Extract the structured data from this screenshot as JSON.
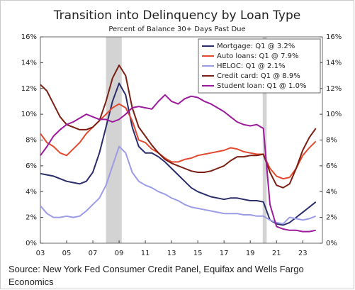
{
  "chart_data": {
    "type": "line",
    "title": "Transition into Delinquency by Loan Type",
    "subtitle": "Percent of Balance 30+ Days Past Due",
    "source": "Source: New York Fed Consumer Credit Panel, Equifax and Wells Fargo Economics",
    "x": [
      2003,
      2003.5,
      2004,
      2004.5,
      2005,
      2005.5,
      2006,
      2006.5,
      2007,
      2007.5,
      2008,
      2008.5,
      2009,
      2009.5,
      2010,
      2010.5,
      2011,
      2011.5,
      2012,
      2012.5,
      2013,
      2013.5,
      2014,
      2014.5,
      2015,
      2015.5,
      2016,
      2016.5,
      2017,
      2017.5,
      2018,
      2018.5,
      2019,
      2019.5,
      2020,
      2020.5,
      2021,
      2021.5,
      2022,
      2022.5,
      2023,
      2023.5,
      2024
    ],
    "series": [
      {
        "name": "Mortgage: Q1 @ 3.2%",
        "color": "#2b2d6b",
        "values": [
          5.4,
          5.3,
          5.2,
          5.0,
          4.8,
          4.7,
          4.6,
          4.8,
          5.5,
          7.0,
          9.0,
          11.0,
          12.4,
          11.5,
          9.0,
          7.5,
          7.0,
          7.0,
          6.7,
          6.3,
          5.8,
          5.3,
          4.8,
          4.3,
          4.0,
          3.8,
          3.6,
          3.5,
          3.4,
          3.5,
          3.5,
          3.4,
          3.3,
          3.3,
          3.2,
          1.8,
          1.5,
          1.4,
          1.6,
          2.0,
          2.4,
          2.8,
          3.2
        ]
      },
      {
        "name": "Auto loans: Q1 @ 7.9%",
        "color": "#e2492f",
        "values": [
          8.5,
          7.8,
          7.5,
          7.0,
          6.8,
          7.3,
          7.8,
          8.5,
          9.0,
          9.5,
          10.0,
          10.5,
          10.8,
          10.5,
          9.5,
          8.0,
          7.8,
          7.3,
          7.0,
          6.6,
          6.3,
          6.3,
          6.5,
          6.6,
          6.8,
          6.9,
          7.0,
          7.1,
          7.2,
          7.4,
          7.3,
          7.1,
          7.0,
          6.9,
          6.9,
          5.8,
          5.2,
          5.0,
          5.1,
          5.8,
          6.8,
          7.4,
          7.9
        ]
      },
      {
        "name": "HELOC: Q1 @ 2.1%",
        "color": "#9b9be6",
        "values": [
          2.9,
          2.3,
          2.0,
          2.0,
          2.1,
          2.0,
          2.1,
          2.5,
          3.0,
          3.5,
          4.5,
          6.0,
          7.5,
          7.0,
          5.5,
          4.8,
          4.5,
          4.3,
          4.0,
          3.8,
          3.5,
          3.3,
          3.0,
          2.8,
          2.7,
          2.6,
          2.5,
          2.4,
          2.3,
          2.3,
          2.3,
          2.2,
          2.2,
          2.1,
          2.1,
          1.8,
          1.6,
          1.5,
          2.0,
          1.9,
          1.8,
          1.9,
          2.1
        ]
      },
      {
        "name": "Credit card: Q1 @ 8.9%",
        "color": "#7a1f12",
        "values": [
          12.3,
          11.8,
          10.8,
          9.8,
          9.2,
          9.0,
          8.8,
          8.8,
          9.0,
          9.5,
          11.0,
          12.8,
          13.8,
          13.0,
          10.5,
          9.0,
          8.3,
          7.6,
          7.0,
          6.5,
          6.2,
          6.0,
          5.8,
          5.6,
          5.5,
          5.5,
          5.6,
          5.8,
          6.0,
          6.4,
          6.7,
          6.7,
          6.8,
          6.8,
          6.9,
          5.5,
          4.5,
          4.3,
          4.6,
          5.8,
          7.2,
          8.2,
          8.9
        ]
      },
      {
        "name": "Student loan: Q1 @ 1.0%",
        "color": "#9c1a9c",
        "values": [
          6.8,
          7.5,
          8.3,
          8.8,
          9.2,
          9.4,
          9.7,
          10.0,
          9.8,
          9.6,
          9.6,
          9.4,
          9.6,
          10.0,
          10.5,
          10.6,
          10.5,
          10.4,
          11.0,
          11.5,
          11.0,
          10.8,
          11.2,
          11.4,
          11.3,
          11.0,
          10.8,
          10.5,
          10.2,
          9.8,
          9.4,
          9.2,
          9.1,
          9.2,
          8.9,
          3.0,
          1.3,
          1.1,
          1.0,
          1.0,
          0.9,
          0.9,
          1.0
        ]
      }
    ],
    "recessions": [
      [
        2008.0,
        2009.2
      ],
      [
        2019.95,
        2020.25
      ]
    ],
    "recession_color": "#d3d3d3",
    "xlim": [
      2003,
      2024.5
    ],
    "xticks": [
      {
        "value": 2003,
        "label": "03"
      },
      {
        "value": 2005,
        "label": "05"
      },
      {
        "value": 2007,
        "label": "07"
      },
      {
        "value": 2009,
        "label": "09"
      },
      {
        "value": 2011,
        "label": "11"
      },
      {
        "value": 2013,
        "label": "13"
      },
      {
        "value": 2015,
        "label": "15"
      },
      {
        "value": 2017,
        "label": "17"
      },
      {
        "value": 2019,
        "label": "19"
      },
      {
        "value": 2021,
        "label": "21"
      },
      {
        "value": 2023,
        "label": "23"
      }
    ],
    "ylim": [
      0,
      16
    ],
    "yticks": [
      {
        "value": 0,
        "label": "0%"
      },
      {
        "value": 2,
        "label": "2%"
      },
      {
        "value": 4,
        "label": "4%"
      },
      {
        "value": 6,
        "label": "6%"
      },
      {
        "value": 8,
        "label": "8%"
      },
      {
        "value": 10,
        "label": "10%"
      },
      {
        "value": 12,
        "label": "12%"
      },
      {
        "value": 14,
        "label": "14%"
      },
      {
        "value": 16,
        "label": "16%"
      }
    ],
    "y2lim": [
      0,
      16
    ],
    "y2ticks": [
      {
        "value": 0,
        "label": "0%"
      },
      {
        "value": 2,
        "label": "2%"
      },
      {
        "value": 4,
        "label": "4%"
      },
      {
        "value": 6,
        "label": "6%"
      },
      {
        "value": 8,
        "label": "8%"
      },
      {
        "value": 10,
        "label": "10%"
      },
      {
        "value": 12,
        "label": "12%"
      },
      {
        "value": 14,
        "label": "14%"
      },
      {
        "value": 16,
        "label": "16%"
      }
    ],
    "legend": "upper right"
  }
}
